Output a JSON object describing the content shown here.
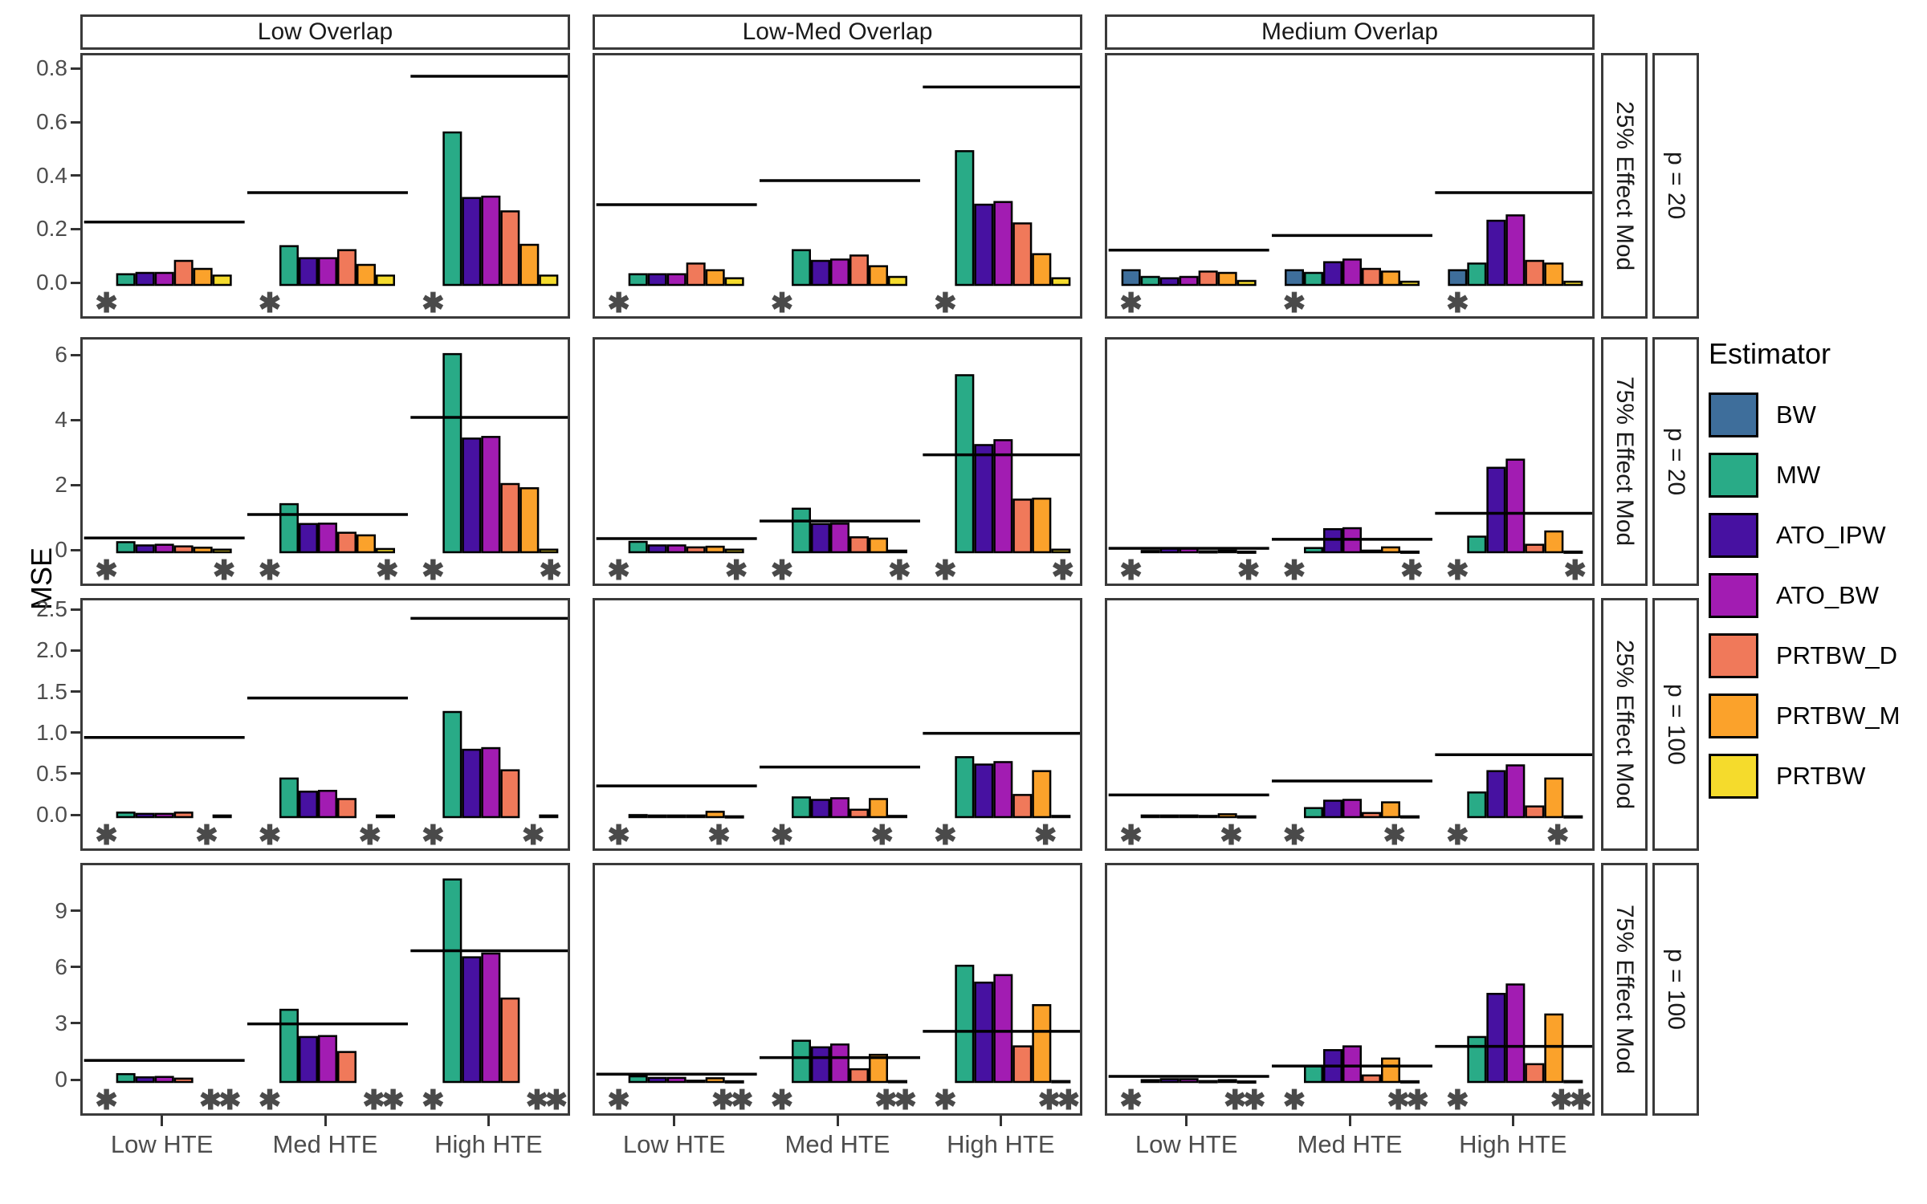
{
  "chart_data": {
    "type": "bar",
    "ylabel": "MSE",
    "legend_title": "Estimator",
    "col_facets": [
      "Low Overlap",
      "Low-Med Overlap",
      "Medium Overlap"
    ],
    "x_categories": [
      "Low HTE",
      "Med HTE",
      "High HTE"
    ],
    "estimators": [
      {
        "name": "BW",
        "color": "#3E6E9B"
      },
      {
        "name": "MW",
        "color": "#29AB87"
      },
      {
        "name": "ATO_IPW",
        "color": "#4711A1"
      },
      {
        "name": "ATO_BW",
        "color": "#A21CB2"
      },
      {
        "name": "PRTBW_D",
        "color": "#F0795A"
      },
      {
        "name": "PRTBW_M",
        "color": "#FBA22B"
      },
      {
        "name": "PRTBW",
        "color": "#F5DB2C"
      }
    ],
    "marker_glyph": "✱",
    "rows": [
      {
        "effect_mod": "25% Effect Mod",
        "p": "p = 20",
        "ylim": [
          0,
          0.84
        ],
        "ytick_values": [
          0,
          0.2,
          0.4,
          0.6,
          0.8
        ],
        "ytick_labels": [
          "0.0",
          "0.2",
          "0.4",
          "0.6",
          "0.8"
        ],
        "panels": [
          {
            "overlap": "Low Overlap",
            "groups": [
              {
                "x": "Low HTE",
                "values": [
                  null,
                  0.04,
                  0.045,
                  0.045,
                  0.09,
                  0.06,
                  0.035
                ],
                "ref": 0.235,
                "asterisks": [
                  0
                ]
              },
              {
                "x": "Med HTE",
                "values": [
                  null,
                  0.145,
                  0.1,
                  0.1,
                  0.13,
                  0.075,
                  0.035
                ],
                "ref": 0.345,
                "asterisks": [
                  0
                ]
              },
              {
                "x": "High HTE",
                "values": [
                  null,
                  0.57,
                  0.325,
                  0.33,
                  0.275,
                  0.15,
                  0.035
                ],
                "ref": 0.78,
                "asterisks": [
                  0
                ]
              }
            ]
          },
          {
            "overlap": "Low-Med Overlap",
            "groups": [
              {
                "x": "Low HTE",
                "values": [
                  null,
                  0.04,
                  0.04,
                  0.04,
                  0.08,
                  0.055,
                  0.025
                ],
                "ref": 0.3,
                "asterisks": [
                  0
                ]
              },
              {
                "x": "Med HTE",
                "values": [
                  null,
                  0.13,
                  0.09,
                  0.095,
                  0.11,
                  0.07,
                  0.03
                ],
                "ref": 0.39,
                "asterisks": [
                  0
                ]
              },
              {
                "x": "High HTE",
                "values": [
                  null,
                  0.5,
                  0.3,
                  0.31,
                  0.23,
                  0.115,
                  0.025
                ],
                "ref": 0.74,
                "asterisks": [
                  0
                ]
              }
            ]
          },
          {
            "overlap": "Medium Overlap",
            "groups": [
              {
                "x": "Low HTE",
                "values": [
                  0.055,
                  0.03,
                  0.025,
                  0.03,
                  0.05,
                  0.045,
                  0.015
                ],
                "ref": 0.13,
                "asterisks": [
                  0
                ]
              },
              {
                "x": "Med HTE",
                "values": [
                  0.055,
                  0.045,
                  0.085,
                  0.095,
                  0.06,
                  0.05,
                  0.012
                ],
                "ref": 0.185,
                "asterisks": [
                  0
                ]
              },
              {
                "x": "High HTE",
                "values": [
                  0.055,
                  0.08,
                  0.24,
                  0.26,
                  0.09,
                  0.08,
                  0.012
                ],
                "ref": 0.345,
                "asterisks": [
                  0
                ]
              }
            ]
          }
        ]
      },
      {
        "effect_mod": "75% Effect Mod",
        "p": "p = 20",
        "ylim": [
          0,
          6.4
        ],
        "ytick_values": [
          0,
          2,
          4,
          6
        ],
        "ytick_labels": [
          "0",
          "2",
          "4",
          "6"
        ],
        "panels": [
          {
            "overlap": "Low Overlap",
            "groups": [
              {
                "x": "Low HTE",
                "values": [
                  null,
                  0.31,
                  0.21,
                  0.23,
                  0.18,
                  0.14,
                  0.08
                ],
                "ref": 0.44,
                "asterisks": [
                  0,
                  6.1
                ]
              },
              {
                "x": "Med HTE",
                "values": [
                  null,
                  1.48,
                  0.87,
                  0.88,
                  0.6,
                  0.52,
                  0.1
                ],
                "ref": 1.16,
                "asterisks": [
                  0,
                  6.1
                ]
              },
              {
                "x": "High HTE",
                "values": [
                  null,
                  6.1,
                  3.5,
                  3.55,
                  2.1,
                  1.97,
                  0.08
                ],
                "ref": 4.15,
                "asterisks": [
                  0,
                  6.1
                ]
              }
            ]
          },
          {
            "overlap": "Low-Med Overlap",
            "groups": [
              {
                "x": "Low HTE",
                "values": [
                  null,
                  0.32,
                  0.21,
                  0.21,
                  0.15,
                  0.17,
                  0.08
                ],
                "ref": 0.42,
                "asterisks": [
                  0,
                  6.1
                ]
              },
              {
                "x": "Med HTE",
                "values": [
                  null,
                  1.34,
                  0.87,
                  0.88,
                  0.46,
                  0.42,
                  0.05
                ],
                "ref": 0.96,
                "asterisks": [
                  0,
                  6.1
                ]
              },
              {
                "x": "High HTE",
                "values": [
                  null,
                  5.45,
                  3.3,
                  3.45,
                  1.62,
                  1.65,
                  0.08
                ],
                "ref": 3.0,
                "asterisks": [
                  0,
                  6.1
                ]
              }
            ]
          },
          {
            "overlap": "Medium Overlap",
            "groups": [
              {
                "x": "Low HTE",
                "values": [
                  null,
                  0.04,
                  0.12,
                  0.12,
                  0.03,
                  0.05,
                  0.02
                ],
                "ref": 0.12,
                "asterisks": [
                  0,
                  6.1
                ]
              },
              {
                "x": "Med HTE",
                "values": [
                  null,
                  0.13,
                  0.71,
                  0.74,
                  0.05,
                  0.15,
                  0.02
                ],
                "ref": 0.4,
                "asterisks": [
                  0,
                  6.1
                ]
              },
              {
                "x": "High HTE",
                "values": [
                  null,
                  0.48,
                  2.6,
                  2.85,
                  0.23,
                  0.64,
                  0.02
                ],
                "ref": 1.2,
                "asterisks": [
                  0,
                  6.1
                ]
              }
            ]
          }
        ]
      },
      {
        "effect_mod": "25% Effect Mod",
        "p": "p = 100",
        "ylim": [
          0,
          2.58
        ],
        "ytick_values": [
          0,
          0.5,
          1.0,
          1.5,
          2.0,
          2.5
        ],
        "ytick_labels": [
          "0.0",
          "0.5",
          "1.0",
          "1.5",
          "2.0",
          "2.5"
        ],
        "panels": [
          {
            "overlap": "Low Overlap",
            "groups": [
              {
                "x": "Low HTE",
                "values": [
                  null,
                  0.055,
                  0.04,
                  0.04,
                  0.055,
                  null,
                  0.02
                ],
                "ref": 0.97,
                "asterisks": [
                  0,
                  5.2
                ]
              },
              {
                "x": "Med HTE",
                "values": [
                  null,
                  0.47,
                  0.31,
                  0.32,
                  0.22,
                  null,
                  0.02
                ],
                "ref": 1.45,
                "asterisks": [
                  0,
                  5.2
                ]
              },
              {
                "x": "High HTE",
                "values": [
                  null,
                  1.28,
                  0.82,
                  0.84,
                  0.57,
                  null,
                  0.02
                ],
                "ref": 2.42,
                "asterisks": [
                  0,
                  5.2
                ]
              }
            ]
          },
          {
            "overlap": "Low-Med Overlap",
            "groups": [
              {
                "x": "Low HTE",
                "values": [
                  null,
                  0.025,
                  0.02,
                  0.02,
                  0.02,
                  0.065,
                  0.01
                ],
                "ref": 0.38,
                "asterisks": [
                  0,
                  5.2
                ]
              },
              {
                "x": "Med HTE",
                "values": [
                  null,
                  0.24,
                  0.21,
                  0.23,
                  0.09,
                  0.22,
                  0.015
                ],
                "ref": 0.61,
                "asterisks": [
                  0,
                  5.2
                ]
              },
              {
                "x": "High HTE",
                "values": [
                  null,
                  0.73,
                  0.64,
                  0.67,
                  0.27,
                  0.56,
                  0.015
                ],
                "ref": 1.02,
                "asterisks": [
                  0,
                  5.2
                ]
              }
            ]
          },
          {
            "overlap": "Medium Overlap",
            "groups": [
              {
                "x": "Low HTE",
                "values": [
                  null,
                  0.02,
                  0.02,
                  0.02,
                  0.015,
                  0.035,
                  0.01
                ],
                "ref": 0.27,
                "asterisks": [
                  0,
                  5.2
                ]
              },
              {
                "x": "Med HTE",
                "values": [
                  null,
                  0.11,
                  0.2,
                  0.21,
                  0.05,
                  0.18,
                  0.01
                ],
                "ref": 0.44,
                "asterisks": [
                  0,
                  5.2
                ]
              },
              {
                "x": "High HTE",
                "values": [
                  null,
                  0.3,
                  0.56,
                  0.63,
                  0.13,
                  0.47,
                  0.01
                ],
                "ref": 0.76,
                "asterisks": [
                  0,
                  5.2
                ]
              }
            ]
          }
        ]
      },
      {
        "effect_mod": "75% Effect Mod",
        "p": "p = 100",
        "ylim": [
          0,
          11.3
        ],
        "ytick_values": [
          0,
          3,
          6,
          9
        ],
        "ytick_labels": [
          "0",
          "3",
          "6",
          "9"
        ],
        "panels": [
          {
            "overlap": "Low Overlap",
            "groups": [
              {
                "x": "Low HTE",
                "values": [
                  null,
                  0.42,
                  0.25,
                  0.27,
                  0.18,
                  null,
                  null
                ],
                "ref": 1.15,
                "asterisks": [
                  0,
                  5.4,
                  6.4
                ]
              },
              {
                "x": "Med HTE",
                "values": [
                  null,
                  3.85,
                  2.4,
                  2.45,
                  1.6,
                  null,
                  null
                ],
                "ref": 3.1,
                "asterisks": [
                  0,
                  5.4,
                  6.4
                ]
              },
              {
                "x": "High HTE",
                "values": [
                  null,
                  10.8,
                  6.65,
                  6.85,
                  4.45,
                  null,
                  null
                ],
                "ref": 7.0,
                "asterisks": [
                  0,
                  5.4,
                  6.4
                ]
              }
            ]
          },
          {
            "overlap": "Low-Med Overlap",
            "groups": [
              {
                "x": "Low HTE",
                "values": [
                  null,
                  0.3,
                  0.22,
                  0.22,
                  0.07,
                  0.2,
                  0.04
                ],
                "ref": 0.42,
                "asterisks": [
                  0,
                  5.4,
                  6.4
                ]
              },
              {
                "x": "Med HTE",
                "values": [
                  null,
                  2.2,
                  1.85,
                  2.0,
                  0.68,
                  1.45,
                  0.05
                ],
                "ref": 1.3,
                "asterisks": [
                  0,
                  5.4,
                  6.4
                ]
              },
              {
                "x": "High HTE",
                "values": [
                  null,
                  6.2,
                  5.3,
                  5.7,
                  1.9,
                  4.1,
                  0.05
                ],
                "ref": 2.7,
                "asterisks": [
                  0,
                  5.4,
                  6.4
                ]
              }
            ]
          },
          {
            "overlap": "Medium Overlap",
            "groups": [
              {
                "x": "Low HTE",
                "values": [
                  null,
                  0.1,
                  0.15,
                  0.15,
                  0.05,
                  0.1,
                  0.03
                ],
                "ref": 0.3,
                "asterisks": [
                  0,
                  5.4,
                  6.4
                ]
              },
              {
                "x": "Med HTE",
                "values": [
                  null,
                  0.85,
                  1.7,
                  1.9,
                  0.35,
                  1.25,
                  0.04
                ],
                "ref": 0.85,
                "asterisks": [
                  0,
                  5.4,
                  6.4
                ]
              },
              {
                "x": "High HTE",
                "values": [
                  null,
                  2.4,
                  4.7,
                  5.2,
                  0.95,
                  3.6,
                  0.05
                ],
                "ref": 1.9,
                "asterisks": [
                  0,
                  5.4,
                  6.4
                ]
              }
            ]
          }
        ]
      }
    ]
  }
}
